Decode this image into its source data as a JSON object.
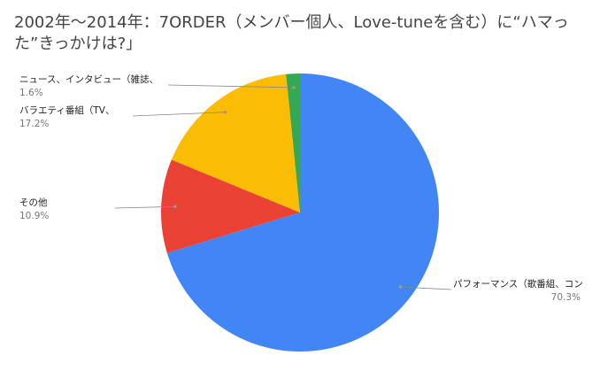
{
  "chart_data": {
    "type": "pie",
    "title": "2002年～2014年：7ORDER（メンバー個人、Love-tuneを含む）に“ハマった”きっかけは?」",
    "slices": [
      {
        "label": "パフォーマンス（歌番組、コン",
        "value": 70.3,
        "percent_label": "70.3%",
        "color": "#4285f4"
      },
      {
        "label": "その他",
        "value": 10.9,
        "percent_label": "10.9%",
        "color": "#ea4335"
      },
      {
        "label": "バラエティ番組（TV、",
        "value": 17.2,
        "percent_label": "17.2%",
        "color": "#fbbc04"
      },
      {
        "label": "ニュース、インタビュー（雑誌、",
        "value": 1.6,
        "percent_label": "1.6%",
        "color": "#34a853"
      }
    ],
    "legend": "none",
    "label_style": "callout lines with name and percentage"
  }
}
